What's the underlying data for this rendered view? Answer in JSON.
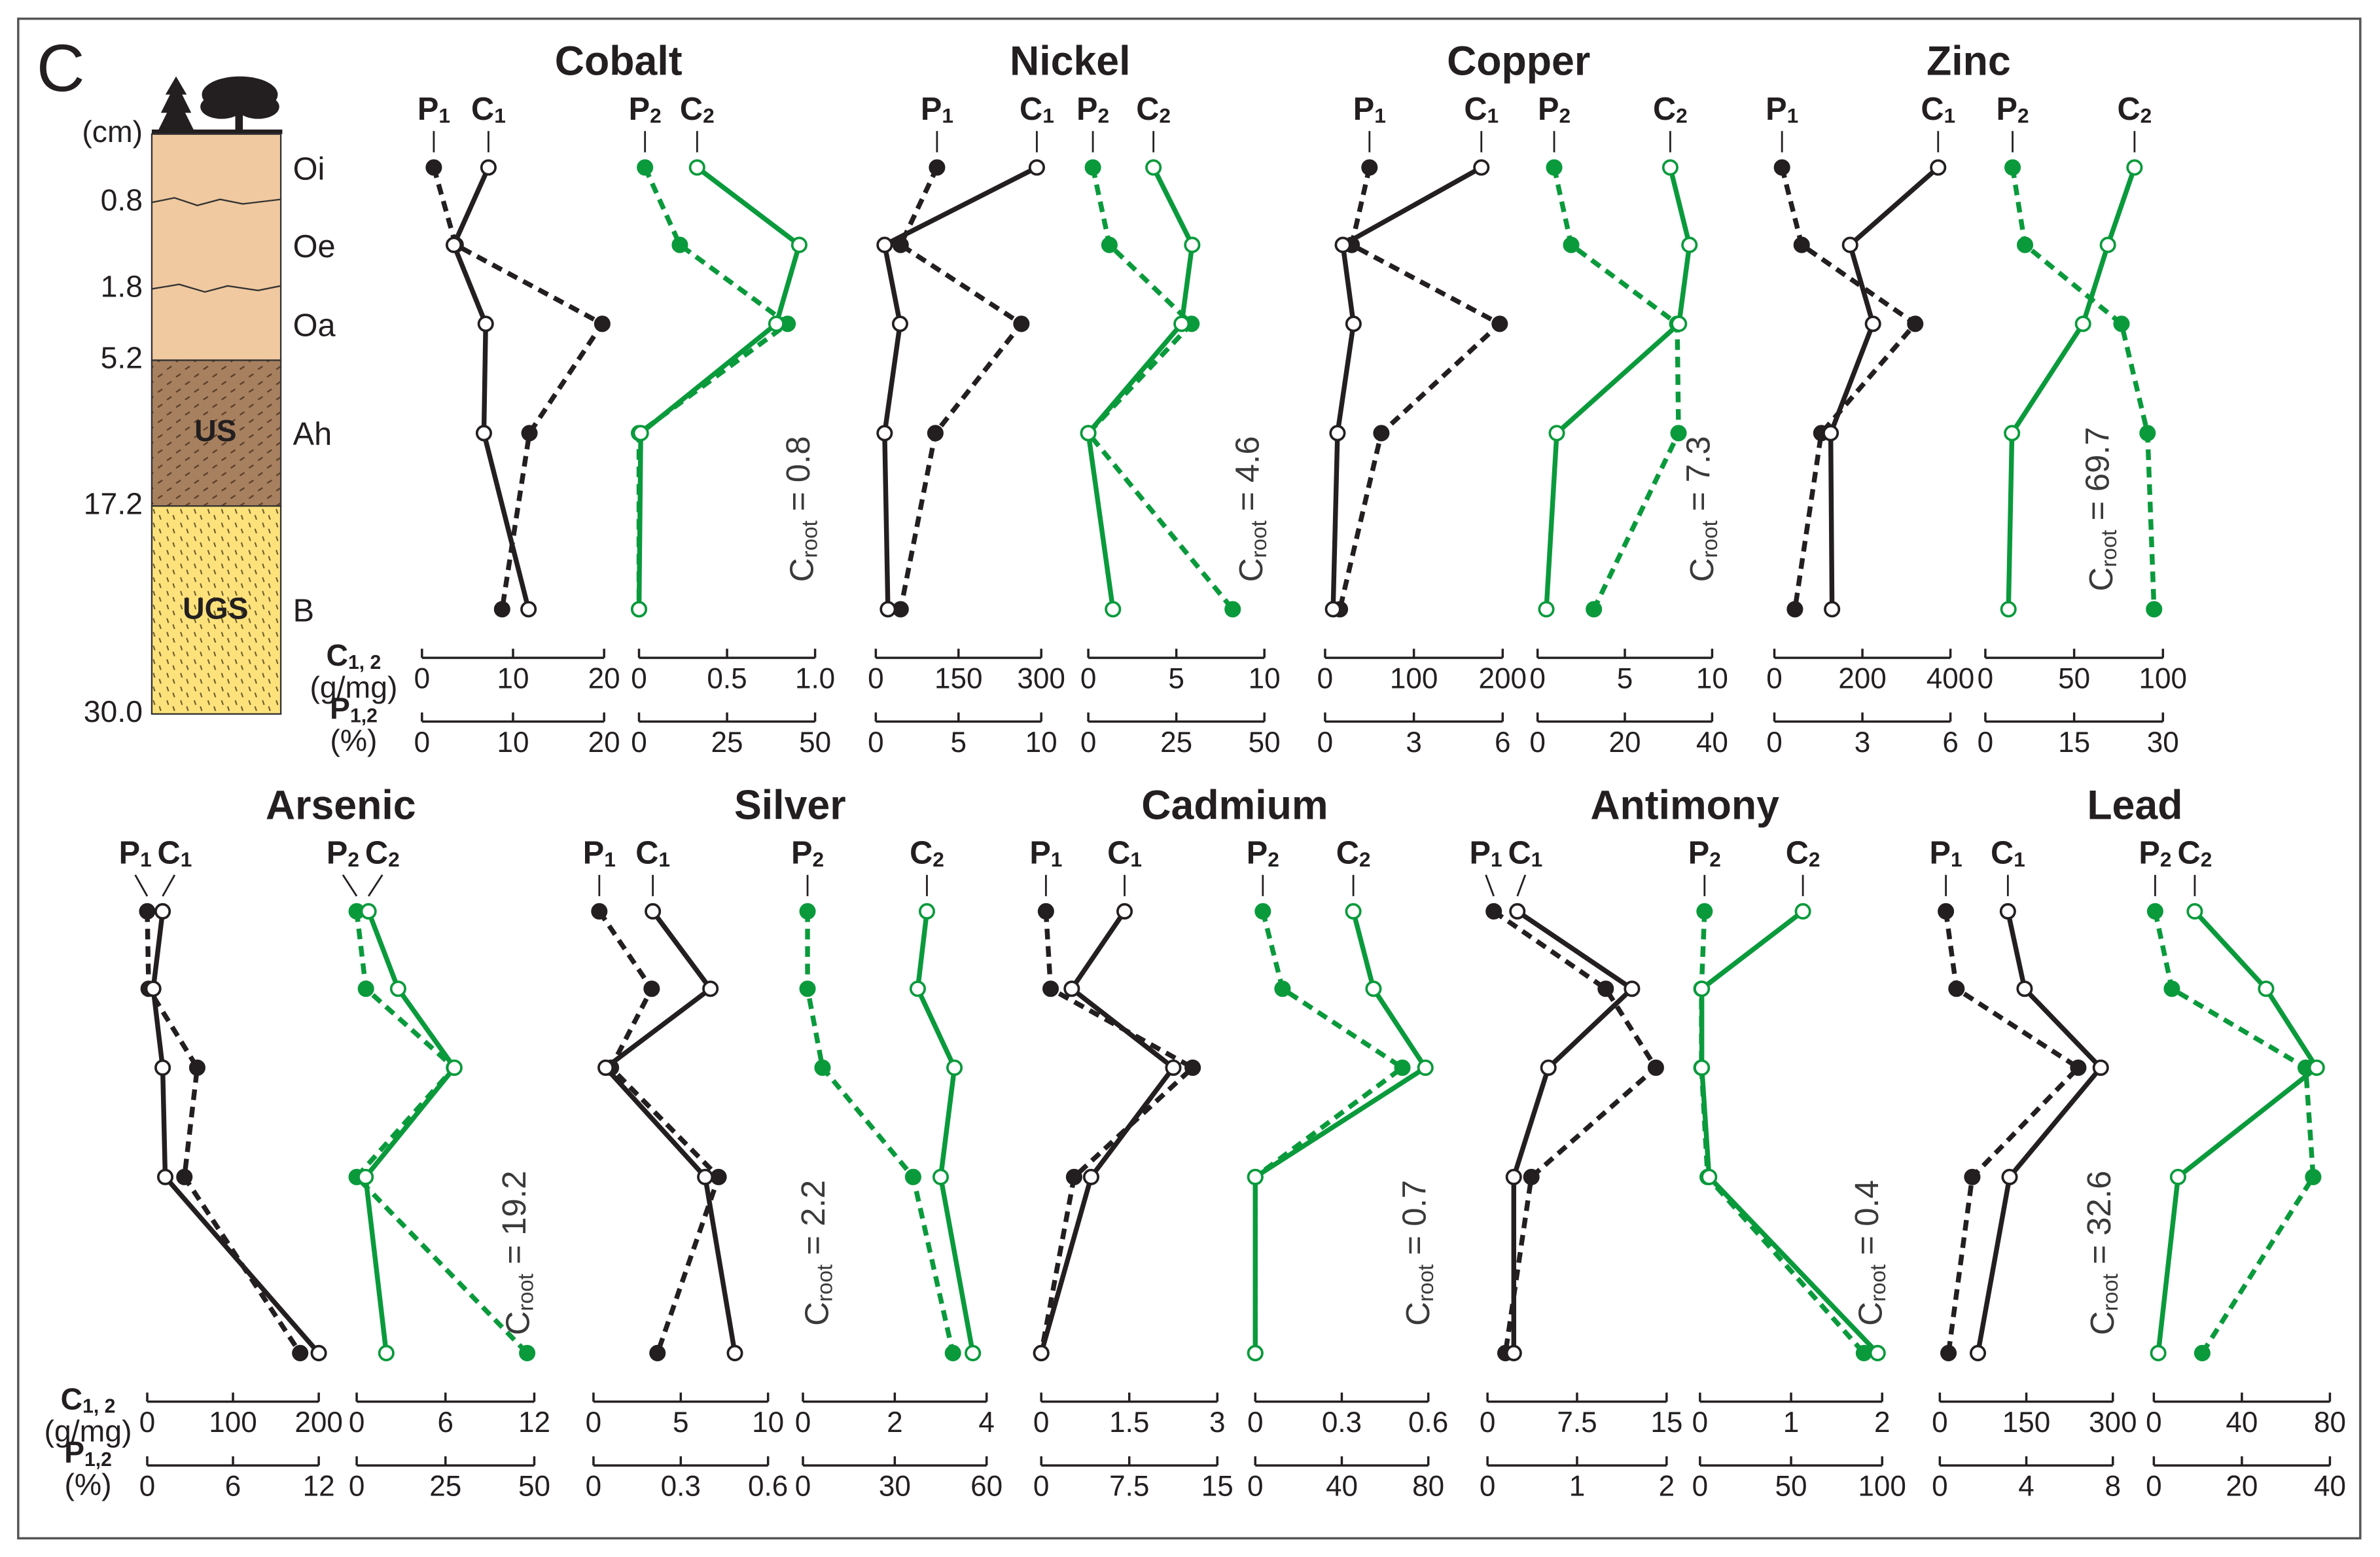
{
  "panel_label": "C",
  "profile": {
    "depth_label": "(cm)",
    "depths": [
      0.8,
      1.8,
      5.2,
      17.2,
      {
        "value": 30,
        "label": "30.0"
      }
    ],
    "horizons": [
      "Oi",
      "Oe",
      "Oa",
      "Ah",
      "B"
    ],
    "layers": [
      "US",
      "UGS"
    ]
  },
  "axis_labels": {
    "c": "C1, 2",
    "c_unit": "(g/mg)",
    "p": "P1,2",
    "p_unit": "(%)"
  },
  "chart_data": [
    {
      "type": "line",
      "title": "Cobalt",
      "annotation": "Croot = 0.8",
      "panels": [
        {
          "xlim": [
            0,
            20
          ],
          "xticks": [
            0,
            10,
            20
          ],
          "x2lim": [
            0,
            20
          ],
          "x2ticks": [
            0,
            10,
            20
          ],
          "series": [
            {
              "name": "P1",
              "color": "#231f20",
              "axis": "x2",
              "dashed": true,
              "marker": "filled",
              "values": [
                1.3,
                3.7,
                19.8,
                11.8,
                8.8
              ]
            },
            {
              "name": "C1",
              "color": "#231f20",
              "marker": "open",
              "values": [
                7.3,
                3.5,
                7,
                6.8,
                11.7
              ]
            }
          ]
        },
        {
          "xlim": [
            0,
            1
          ],
          "xticks": [
            0,
            0.5,
            {
              "value": 1,
              "label": "1.0"
            }
          ],
          "x2lim": [
            0,
            50
          ],
          "x2ticks": [
            0,
            25,
            50
          ],
          "series": [
            {
              "name": "P2",
              "color": "#0a9a3c",
              "axis": "x2",
              "dashed": true,
              "marker": "filled",
              "values": [
                1.7,
                11.6,
                42.2,
                0,
                0
              ]
            },
            {
              "name": "C2",
              "color": "#0a9a3c",
              "marker": "open",
              "values": [
                0.33,
                0.91,
                0.78,
                0.01,
                0
              ]
            }
          ]
        }
      ]
    },
    {
      "type": "line",
      "title": "Nickel",
      "annotation": "Croot = 4.6",
      "panels": [
        {
          "xlim": [
            0,
            300
          ],
          "xticks": [
            0,
            150,
            300
          ],
          "x2lim": [
            0,
            10
          ],
          "x2ticks": [
            0,
            5,
            10
          ],
          "series": [
            {
              "name": "P1",
              "color": "#231f20",
              "axis": "x2",
              "dashed": true,
              "marker": "filled",
              "values": [
                3.7,
                1.5,
                8.8,
                3.6,
                1.5
              ]
            },
            {
              "name": "C1",
              "color": "#231f20",
              "marker": "open",
              "values": [
                292,
                16,
                44,
                16,
                22
              ]
            }
          ]
        },
        {
          "xlim": [
            0,
            10
          ],
          "xticks": [
            0,
            5,
            10
          ],
          "x2lim": [
            0,
            50
          ],
          "x2ticks": [
            0,
            25,
            50
          ],
          "series": [
            {
              "name": "P2",
              "color": "#0a9a3c",
              "axis": "x2",
              "dashed": true,
              "marker": "filled",
              "values": [
                1.3,
                6,
                29.3,
                0,
                41
              ]
            },
            {
              "name": "C2",
              "color": "#0a9a3c",
              "marker": "open",
              "values": [
                3.7,
                5.9,
                5.3,
                0,
                1.4
              ]
            }
          ]
        }
      ]
    },
    {
      "type": "line",
      "title": "Copper",
      "annotation": "Croot = 7.3",
      "panels": [
        {
          "xlim": [
            0,
            200
          ],
          "xticks": [
            0,
            100,
            200
          ],
          "x2lim": [
            0,
            6
          ],
          "x2ticks": [
            0,
            3,
            6
          ],
          "series": [
            {
              "name": "P1",
              "color": "#231f20",
              "axis": "x2",
              "dashed": true,
              "marker": "filled",
              "values": [
                1.5,
                0.9,
                5.9,
                1.9,
                0.5
              ]
            },
            {
              "name": "C1",
              "color": "#231f20",
              "marker": "open",
              "values": [
                176,
                20,
                32,
                14,
                9
              ]
            }
          ]
        },
        {
          "xlim": [
            0,
            10
          ],
          "xticks": [
            0,
            5,
            10
          ],
          "x2lim": [
            0,
            40
          ],
          "x2ticks": [
            0,
            20,
            40
          ],
          "series": [
            {
              "name": "P2",
              "color": "#0a9a3c",
              "axis": "x2",
              "dashed": true,
              "marker": "filled",
              "values": [
                3.8,
                7.7,
                32,
                32.3,
                12.9
              ]
            },
            {
              "name": "C2",
              "color": "#0a9a3c",
              "marker": "open",
              "values": [
                7.6,
                8.7,
                8.1,
                1.1,
                0.5
              ]
            }
          ]
        }
      ]
    },
    {
      "type": "line",
      "title": "Zinc",
      "annotation": "Croot = 69.7",
      "panels": [
        {
          "xlim": [
            0,
            400
          ],
          "xticks": [
            0,
            200,
            400
          ],
          "x2lim": [
            0,
            6
          ],
          "x2ticks": [
            0,
            3,
            6
          ],
          "series": [
            {
              "name": "P1",
              "color": "#231f20",
              "axis": "x2",
              "dashed": true,
              "marker": "filled",
              "values": [
                0.26,
                0.93,
                4.8,
                1.6,
                0.7
              ]
            },
            {
              "name": "C1",
              "color": "#231f20",
              "marker": "open",
              "values": [
                372,
                172,
                224,
                128,
                131
              ]
            }
          ]
        },
        {
          "xlim": [
            0,
            100
          ],
          "xticks": [
            0,
            50,
            100
          ],
          "x2lim": [
            0,
            30
          ],
          "x2ticks": [
            0,
            15,
            30
          ],
          "series": [
            {
              "name": "P2",
              "color": "#0a9a3c",
              "axis": "x2",
              "dashed": true,
              "marker": "filled",
              "values": [
                4.6,
                6.7,
                23,
                27.4,
                28.5
              ]
            },
            {
              "name": "C2",
              "color": "#0a9a3c",
              "marker": "open",
              "values": [
                84,
                69,
                55,
                15,
                13
              ]
            }
          ]
        }
      ]
    },
    {
      "type": "line",
      "title": "Arsenic",
      "annotation": "Croot = 19.2",
      "panels": [
        {
          "xlim": [
            0,
            200
          ],
          "xticks": [
            0,
            100,
            200
          ],
          "x2lim": [
            0,
            12
          ],
          "x2ticks": [
            0,
            6,
            12
          ],
          "series": [
            {
              "name": "P1",
              "color": "#231f20",
              "axis": "x2",
              "dashed": true,
              "marker": "filled",
              "values": [
                0,
                0.1,
                3.5,
                2.6,
                10.7
              ]
            },
            {
              "name": "C1",
              "color": "#231f20",
              "marker": "open",
              "values": [
                18,
                7,
                18,
                21,
                200
              ]
            }
          ]
        },
        {
          "xlim": [
            0,
            12
          ],
          "xticks": [
            0,
            6,
            12
          ],
          "x2lim": [
            0,
            50
          ],
          "x2ticks": [
            0,
            25,
            50
          ],
          "series": [
            {
              "name": "P2",
              "color": "#0a9a3c",
              "axis": "x2",
              "dashed": true,
              "marker": "filled",
              "values": [
                0,
                2.6,
                27.4,
                0,
                48
              ]
            },
            {
              "name": "C2",
              "color": "#0a9a3c",
              "marker": "open",
              "values": [
                0.8,
                2.8,
                6.6,
                0.6,
                2
              ]
            }
          ]
        }
      ]
    },
    {
      "type": "line",
      "title": "Silver",
      "annotation": "Croot = 2.2",
      "panels": [
        {
          "xlim": [
            0,
            10
          ],
          "xticks": [
            0,
            5,
            10
          ],
          "x2lim": [
            0,
            0.6
          ],
          "x2ticks": [
            0,
            0.3,
            0.6
          ],
          "series": [
            {
              "name": "P1",
              "color": "#231f20",
              "axis": "x2",
              "dashed": true,
              "marker": "filled",
              "values": [
                0.02,
                0.2,
                0.06,
                0.43,
                0.22
              ]
            },
            {
              "name": "C1",
              "color": "#231f20",
              "marker": "open",
              "values": [
                3.4,
                6.7,
                0.7,
                6.4,
                8.1
              ]
            }
          ]
        },
        {
          "xlim": [
            0,
            4
          ],
          "xticks": [
            0,
            2,
            4
          ],
          "x2lim": [
            0,
            60
          ],
          "x2ticks": [
            0,
            30,
            60
          ],
          "series": [
            {
              "name": "P2",
              "color": "#0a9a3c",
              "axis": "x2",
              "dashed": true,
              "marker": "filled",
              "values": [
                1.5,
                1.5,
                6.4,
                36,
                49
              ]
            },
            {
              "name": "C2",
              "color": "#0a9a3c",
              "marker": "open",
              "values": [
                2.7,
                2.5,
                3.3,
                3,
                3.7
              ]
            }
          ]
        }
      ]
    },
    {
      "type": "line",
      "title": "Cadmium",
      "annotation": "Croot = 0.7",
      "panels": [
        {
          "xlim": [
            0,
            3
          ],
          "xticks": [
            0,
            1.5,
            3
          ],
          "x2lim": [
            0,
            15
          ],
          "x2ticks": [
            0,
            7.5,
            15
          ],
          "series": [
            {
              "name": "P1",
              "color": "#231f20",
              "axis": "x2",
              "dashed": true,
              "marker": "filled",
              "values": [
                0.4,
                0.8,
                12.9,
                2.8,
                0
              ]
            },
            {
              "name": "C1",
              "color": "#231f20",
              "marker": "open",
              "values": [
                1.42,
                0.52,
                2.25,
                0.85,
                0
              ]
            }
          ]
        },
        {
          "xlim": [
            0,
            0.6
          ],
          "xticks": [
            0,
            0.3,
            0.6
          ],
          "x2lim": [
            0,
            80
          ],
          "x2ticks": [
            0,
            40,
            80
          ],
          "series": [
            {
              "name": "P2",
              "color": "#0a9a3c",
              "axis": "x2",
              "dashed": true,
              "marker": "filled",
              "values": [
                3.5,
                12.6,
                68,
                0,
                0
              ]
            },
            {
              "name": "C2",
              "color": "#0a9a3c",
              "marker": "open",
              "values": [
                0.34,
                0.41,
                0.59,
                0,
                0
              ]
            }
          ]
        }
      ]
    },
    {
      "type": "line",
      "title": "Antimony",
      "annotation": "Croot = 0.4",
      "panels": [
        {
          "xlim": [
            0,
            15
          ],
          "xticks": [
            0,
            7.5,
            15
          ],
          "x2lim": [
            0,
            2
          ],
          "x2ticks": [
            0,
            1,
            2
          ],
          "series": [
            {
              "name": "P1",
              "color": "#231f20",
              "axis": "x2",
              "dashed": true,
              "marker": "filled",
              "values": [
                0.07,
                1.32,
                1.88,
                0.49,
                0.2
              ]
            },
            {
              "name": "C1",
              "color": "#231f20",
              "marker": "open",
              "values": [
                2.5,
                12.1,
                5.1,
                2.2,
                2.2
              ]
            }
          ]
        },
        {
          "xlim": [
            0,
            2
          ],
          "xticks": [
            0,
            1,
            2
          ],
          "x2lim": [
            0,
            100
          ],
          "x2ticks": [
            0,
            50,
            100
          ],
          "series": [
            {
              "name": "P2",
              "color": "#0a9a3c",
              "axis": "x2",
              "dashed": true,
              "marker": "filled",
              "values": [
                2.5,
                0.8,
                0.8,
                4.2,
                90
              ]
            },
            {
              "name": "C2",
              "color": "#0a9a3c",
              "marker": "open",
              "values": [
                1.13,
                0.02,
                0.02,
                0.1,
                1.95
              ]
            }
          ]
        }
      ]
    },
    {
      "type": "line",
      "title": "Lead",
      "annotation": "Croot = 32.6",
      "panels": [
        {
          "xlim": [
            0,
            300
          ],
          "xticks": [
            0,
            150,
            300
          ],
          "x2lim": [
            0,
            8
          ],
          "x2ticks": [
            0,
            4,
            8
          ],
          "series": [
            {
              "name": "P1",
              "color": "#231f20",
              "axis": "x2",
              "dashed": true,
              "marker": "filled",
              "values": [
                0.28,
                0.77,
                6.4,
                1.5,
                0.4
              ]
            },
            {
              "name": "C1",
              "color": "#231f20",
              "marker": "open",
              "values": [
                118,
                147,
                279,
                121,
                66
              ]
            }
          ]
        },
        {
          "xlim": [
            0,
            80
          ],
          "xticks": [
            0,
            40,
            80
          ],
          "x2lim": [
            0,
            40
          ],
          "x2ticks": [
            0,
            20,
            40
          ],
          "series": [
            {
              "name": "P2",
              "color": "#0a9a3c",
              "axis": "x2",
              "dashed": true,
              "marker": "filled",
              "values": [
                0.3,
                4.1,
                34.5,
                36.2,
                11
              ]
            },
            {
              "name": "C2",
              "color": "#0a9a3c",
              "marker": "open",
              "values": [
                18.6,
                51,
                74,
                11,
                2
              ]
            }
          ]
        }
      ]
    }
  ]
}
